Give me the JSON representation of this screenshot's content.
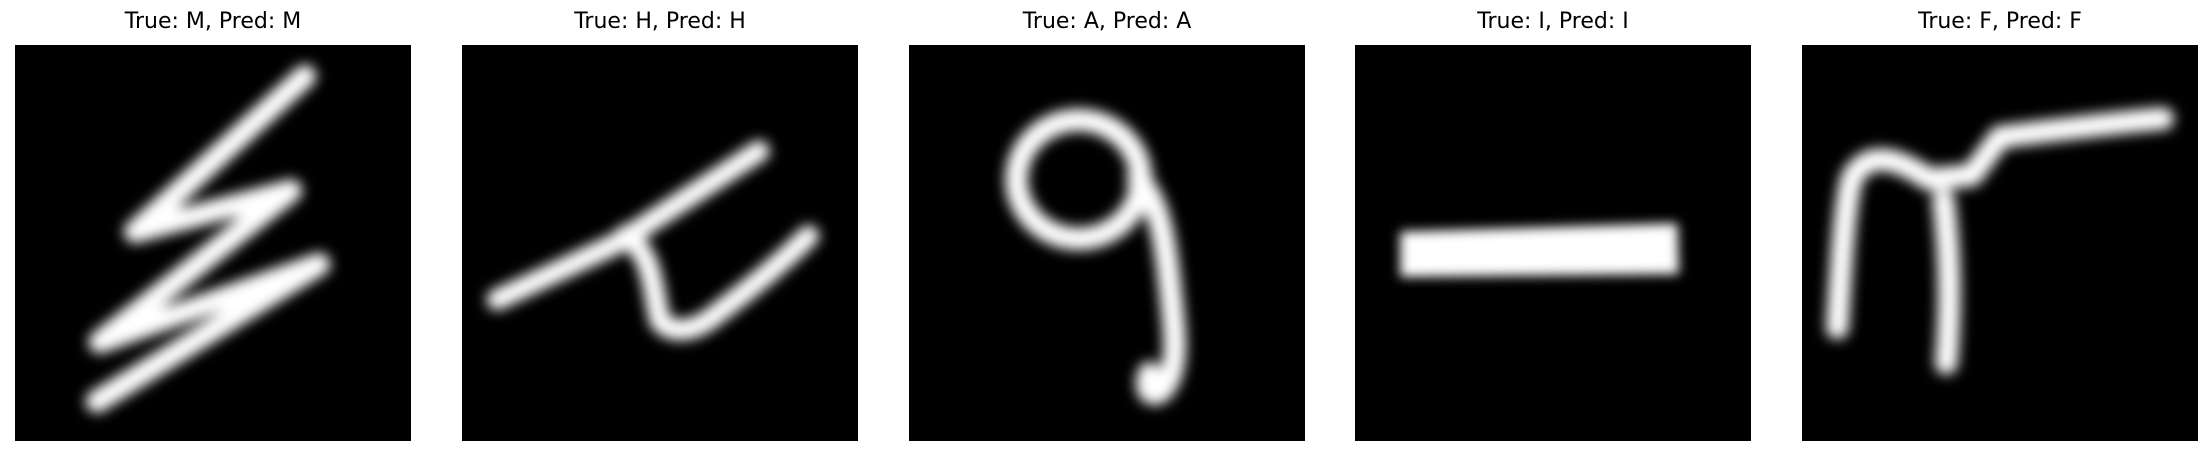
{
  "samples": [
    {
      "title": "True: M, Pred: M",
      "true_label": "M",
      "pred_label": "M"
    },
    {
      "title": "True: H, Pred: H",
      "true_label": "H",
      "pred_label": "H"
    },
    {
      "title": "True: A, Pred: A",
      "true_label": "A",
      "pred_label": "A"
    },
    {
      "title": "True: I, Pred: I",
      "true_label": "I",
      "pred_label": "I"
    },
    {
      "title": "True: F, Pred: F",
      "true_label": "F",
      "pred_label": "F"
    }
  ],
  "colors": {
    "image_background": "#000000",
    "stroke": "#ffffff",
    "title_text": "#000000"
  }
}
